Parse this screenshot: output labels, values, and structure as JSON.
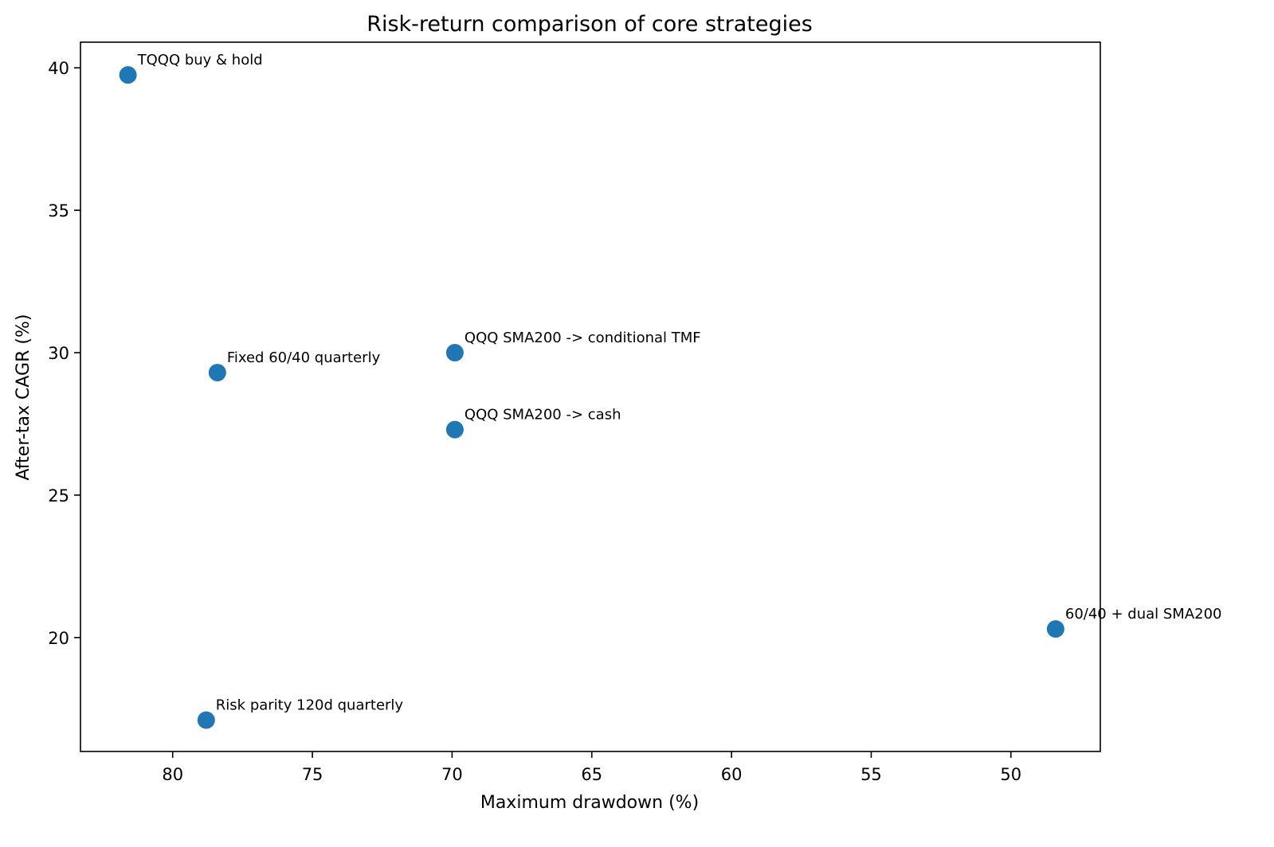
{
  "chart_data": {
    "type": "scatter",
    "title": "Risk-return comparison of core strategies",
    "xlabel": "Maximum drawdown (%)",
    "ylabel": "After-tax CAGR (%)",
    "x_inverted": true,
    "xlim": [
      83.3,
      46.8
    ],
    "ylim": [
      16.0,
      40.9
    ],
    "xticks": [
      80,
      75,
      70,
      65,
      60,
      55,
      50
    ],
    "yticks": [
      20,
      25,
      30,
      35,
      40
    ],
    "grid": false,
    "legend": "none",
    "marker_color": "#1f77b4",
    "points": [
      {
        "label": "TQQQ buy & hold",
        "x": 81.6,
        "y": 39.75
      },
      {
        "label": "Fixed 60/40 quarterly",
        "x": 78.4,
        "y": 29.3
      },
      {
        "label": "QQQ SMA200 -> conditional TMF",
        "x": 69.9,
        "y": 30.0
      },
      {
        "label": "QQQ SMA200 -> cash",
        "x": 69.9,
        "y": 27.3
      },
      {
        "label": "60/40 + dual SMA200",
        "x": 48.4,
        "y": 20.3
      },
      {
        "label": "Risk parity 120d quarterly",
        "x": 78.8,
        "y": 17.1
      }
    ]
  }
}
